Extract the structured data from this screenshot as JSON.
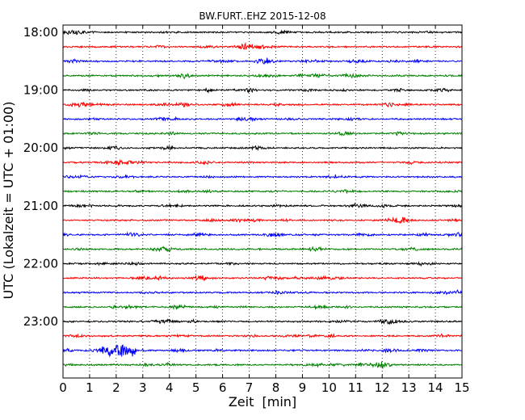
{
  "chart_data": {
    "type": "line",
    "title": "BW.FURT..EHZ 2015-12-08",
    "xlabel": "Zeit  [min]",
    "ylabel": "UTC (Lokalzeit = UTC + 01:00)",
    "xlim": [
      0,
      15
    ],
    "x_ticks": [
      0,
      1,
      2,
      3,
      4,
      5,
      6,
      7,
      8,
      9,
      10,
      11,
      12,
      13,
      14,
      15
    ],
    "hour_labels": [
      "18:00",
      "19:00",
      "20:00",
      "21:00",
      "22:00",
      "23:00"
    ],
    "grid": {
      "vertical_dotted": true,
      "horizontal": false
    },
    "traces_per_hour": 4,
    "trace_interval_min": 15,
    "trace_colors": [
      "#000000",
      "#ff0000",
      "#0000ff",
      "#008000"
    ],
    "num_traces": 24,
    "notable_events": [
      {
        "trace": 1,
        "x_min": 6.8,
        "amp": 0.35
      },
      {
        "trace": 2,
        "x_min": 7.5,
        "amp": 0.45
      },
      {
        "trace": 5,
        "x_min": 0.6,
        "amp": 0.3
      },
      {
        "trace": 5,
        "x_min": 4.5,
        "amp": 0.3
      },
      {
        "trace": 9,
        "x_min": 5.4,
        "amp": 0.35
      },
      {
        "trace": 13,
        "x_min": 12.5,
        "amp": 0.3
      },
      {
        "trace": 14,
        "x_min": 7.9,
        "amp": 0.3
      },
      {
        "trace": 17,
        "x_min": 5.2,
        "amp": 0.35
      },
      {
        "trace": 22,
        "x_min": 1.9,
        "amp": 1.2
      },
      {
        "trace": 22,
        "x_min": 2.6,
        "amp": 0.7
      },
      {
        "trace": 22,
        "x_min": 12.3,
        "amp": 0.3
      }
    ]
  }
}
